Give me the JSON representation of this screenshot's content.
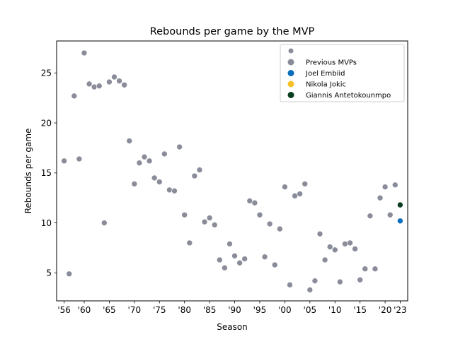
{
  "chart_data": {
    "type": "scatter",
    "title": "Rebounds per game by the MVP",
    "xlabel": "Season",
    "ylabel": "Rebounds per game",
    "xlim": [
      1954.5,
      2024.5
    ],
    "ylim": [
      2.2,
      28.2
    ],
    "xticks": [
      {
        "value": 1956,
        "label": "'56"
      },
      {
        "value": 1960,
        "label": "'60"
      },
      {
        "value": 1965,
        "label": "'65"
      },
      {
        "value": 1970,
        "label": "'70"
      },
      {
        "value": 1975,
        "label": "'75"
      },
      {
        "value": 1980,
        "label": "'80"
      },
      {
        "value": 1985,
        "label": "'85"
      },
      {
        "value": 1990,
        "label": "'90"
      },
      {
        "value": 1995,
        "label": "'95"
      },
      {
        "value": 2000,
        "label": "'00"
      },
      {
        "value": 2005,
        "label": "'05"
      },
      {
        "value": 2010,
        "label": "'10"
      },
      {
        "value": 2015,
        "label": "'15"
      },
      {
        "value": 2020,
        "label": "'20"
      },
      {
        "value": 2023,
        "label": "'23"
      }
    ],
    "yticks": [
      5,
      10,
      15,
      20,
      25
    ],
    "grid": false,
    "legend_position": "top-right",
    "legend_header_marker_color": "#8a8d99",
    "series": [
      {
        "name": "Previous MVPs",
        "color": "#8a8d99",
        "points": [
          {
            "x": 1956,
            "y": 16.2
          },
          {
            "x": 1957,
            "y": 4.9
          },
          {
            "x": 1958,
            "y": 22.7
          },
          {
            "x": 1959,
            "y": 16.4
          },
          {
            "x": 1960,
            "y": 27.0
          },
          {
            "x": 1961,
            "y": 23.9
          },
          {
            "x": 1962,
            "y": 23.6
          },
          {
            "x": 1963,
            "y": 23.7
          },
          {
            "x": 1964,
            "y": 10.0
          },
          {
            "x": 1965,
            "y": 24.1
          },
          {
            "x": 1966,
            "y": 24.6
          },
          {
            "x": 1967,
            "y": 24.2
          },
          {
            "x": 1968,
            "y": 23.8
          },
          {
            "x": 1969,
            "y": 18.2
          },
          {
            "x": 1970,
            "y": 13.9
          },
          {
            "x": 1971,
            "y": 16.0
          },
          {
            "x": 1972,
            "y": 16.6
          },
          {
            "x": 1973,
            "y": 16.2
          },
          {
            "x": 1974,
            "y": 14.5
          },
          {
            "x": 1975,
            "y": 14.1
          },
          {
            "x": 1976,
            "y": 16.9
          },
          {
            "x": 1977,
            "y": 13.3
          },
          {
            "x": 1978,
            "y": 13.2
          },
          {
            "x": 1979,
            "y": 17.6
          },
          {
            "x": 1980,
            "y": 10.8
          },
          {
            "x": 1981,
            "y": 8.0
          },
          {
            "x": 1982,
            "y": 14.7
          },
          {
            "x": 1983,
            "y": 15.3
          },
          {
            "x": 1984,
            "y": 10.1
          },
          {
            "x": 1985,
            "y": 10.5
          },
          {
            "x": 1986,
            "y": 9.8
          },
          {
            "x": 1987,
            "y": 6.3
          },
          {
            "x": 1988,
            "y": 5.5
          },
          {
            "x": 1989,
            "y": 7.9
          },
          {
            "x": 1990,
            "y": 6.7
          },
          {
            "x": 1991,
            "y": 6.0
          },
          {
            "x": 1992,
            "y": 6.4
          },
          {
            "x": 1993,
            "y": 12.2
          },
          {
            "x": 1994,
            "y": 12.0
          },
          {
            "x": 1995,
            "y": 10.8
          },
          {
            "x": 1996,
            "y": 6.6
          },
          {
            "x": 1997,
            "y": 9.9
          },
          {
            "x": 1998,
            "y": 5.8
          },
          {
            "x": 1999,
            "y": 9.4
          },
          {
            "x": 2000,
            "y": 13.6
          },
          {
            "x": 2001,
            "y": 3.8
          },
          {
            "x": 2002,
            "y": 12.7
          },
          {
            "x": 2003,
            "y": 12.9
          },
          {
            "x": 2004,
            "y": 13.9
          },
          {
            "x": 2005,
            "y": 3.3
          },
          {
            "x": 2006,
            "y": 4.2
          },
          {
            "x": 2007,
            "y": 8.9
          },
          {
            "x": 2008,
            "y": 6.3
          },
          {
            "x": 2009,
            "y": 7.6
          },
          {
            "x": 2010,
            "y": 7.3
          },
          {
            "x": 2011,
            "y": 4.1
          },
          {
            "x": 2012,
            "y": 7.9
          },
          {
            "x": 2013,
            "y": 8.0
          },
          {
            "x": 2014,
            "y": 7.4
          },
          {
            "x": 2015,
            "y": 4.3
          },
          {
            "x": 2016,
            "y": 5.4
          },
          {
            "x": 2017,
            "y": 10.7
          },
          {
            "x": 2018,
            "y": 5.4
          },
          {
            "x": 2019,
            "y": 12.5
          },
          {
            "x": 2020,
            "y": 13.6
          },
          {
            "x": 2021,
            "y": 10.8
          },
          {
            "x": 2022,
            "y": 13.8
          }
        ]
      },
      {
        "name": "Joel Embiid",
        "color": "#0a6ebd",
        "points": [
          {
            "x": 2023,
            "y": 10.2
          }
        ]
      },
      {
        "name": "Nikola Jokic",
        "color": "#f5c02a",
        "points": [
          {
            "x": 2023,
            "y": 11.8
          }
        ]
      },
      {
        "name": "Giannis Antetokounmpo",
        "color": "#0b3d1f",
        "points": [
          {
            "x": 2023,
            "y": 11.8
          }
        ]
      }
    ]
  }
}
